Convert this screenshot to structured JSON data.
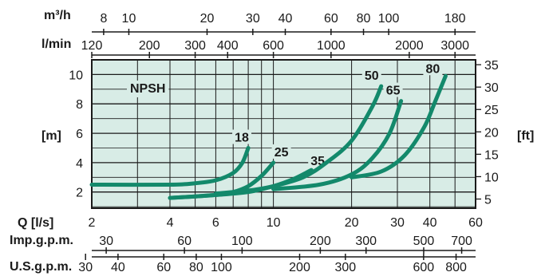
{
  "chart_data": {
    "type": "line",
    "title": "NPSH",
    "colors": {
      "plot_bg": "#d8ece6",
      "grid": "#1a1a1a",
      "curve": "#13896b"
    },
    "log_x": true,
    "grid": true,
    "x_axis_Q_ls": {
      "label": "Q [l/s]",
      "range": [
        2,
        60
      ],
      "ticks": [
        2,
        4,
        6,
        10,
        20,
        30,
        40,
        60
      ]
    },
    "y_axis_m": {
      "label": "[m]",
      "range": [
        0.9,
        11
      ],
      "ticks": [
        2,
        4,
        6,
        8,
        10
      ]
    },
    "y_axis_ft": {
      "label": "[ft]",
      "ticks": [
        5,
        10,
        15,
        20,
        25,
        30,
        35
      ]
    },
    "top_axes": [
      {
        "label": "m³/h",
        "ticks": [
          8,
          10,
          20,
          30,
          40,
          60,
          80,
          100,
          180
        ]
      },
      {
        "label": "l/min",
        "ticks": [
          120,
          200,
          300,
          400,
          600,
          1000,
          2000,
          3000
        ]
      }
    ],
    "bottom_axes": [
      {
        "label": "Imp.g.p.m.",
        "ticks": [
          30,
          60,
          100,
          200,
          300,
          500,
          700
        ]
      },
      {
        "label": "U.S.g.p.m.",
        "ticks": [
          30,
          40,
          60,
          80,
          100,
          200,
          300,
          600,
          800
        ]
      }
    ],
    "series": [
      {
        "name": "18",
        "x": [
          2,
          4,
          5,
          6,
          7,
          7.6,
          8
        ],
        "y": [
          2.5,
          2.5,
          2.6,
          2.8,
          3.3,
          4.0,
          5.0
        ]
      },
      {
        "name": "25",
        "x": [
          4,
          6,
          7,
          8,
          9,
          10
        ],
        "y": [
          1.6,
          1.8,
          2.0,
          2.4,
          3.1,
          4.0
        ]
      },
      {
        "name": "35",
        "x": [
          4,
          6,
          8,
          10,
          12,
          14
        ],
        "y": [
          1.6,
          1.8,
          2.0,
          2.4,
          2.9,
          3.5
        ]
      },
      {
        "name": "50",
        "x": [
          6,
          8,
          10,
          13,
          16,
          20,
          24,
          26
        ],
        "y": [
          1.9,
          2.1,
          2.4,
          3.0,
          4.0,
          5.5,
          7.8,
          9.2
        ]
      },
      {
        "name": "65",
        "x": [
          10,
          15,
          20,
          24,
          28,
          31
        ],
        "y": [
          2.2,
          2.5,
          3.2,
          4.3,
          6.0,
          8.2
        ]
      },
      {
        "name": "80",
        "x": [
          20,
          26,
          32,
          38,
          42,
          46
        ],
        "y": [
          3.0,
          3.4,
          4.5,
          6.4,
          8.2,
          9.9
        ]
      }
    ]
  }
}
